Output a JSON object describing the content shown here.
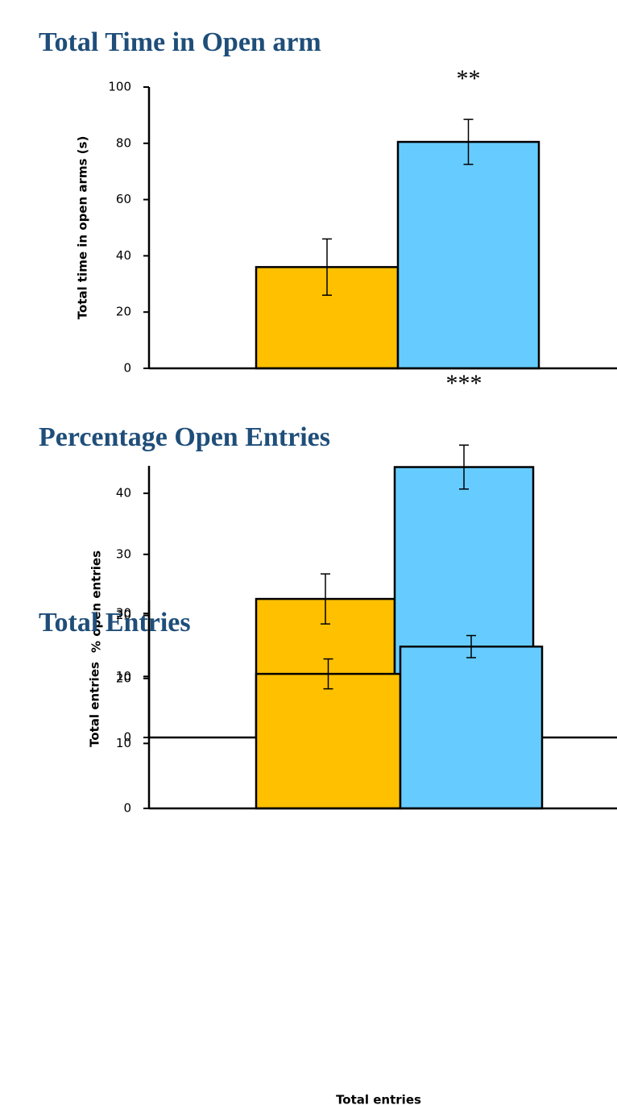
{
  "chart_data": [
    {
      "type": "bar",
      "title": "Total Time in Open arm",
      "y_label": "Total time in open arms (s)",
      "categories": [
        null,
        null
      ],
      "values": [
        36,
        80.5
      ],
      "errors": [
        10,
        8
      ],
      "colors": [
        "#ffc000",
        "#66ccff"
      ],
      "ylim": [
        0,
        100
      ],
      "yticks": [
        0,
        20,
        40,
        60,
        80,
        100
      ],
      "annotations": [
        {
          "text": "**",
          "category": 1
        }
      ]
    },
    {
      "type": "bar",
      "title": "Percentage Open Entries",
      "y_label": "% open entries",
      "categories": [
        null,
        null
      ],
      "values": [
        22.7,
        44.3
      ],
      "errors": [
        4.1,
        3.6
      ],
      "colors": [
        "#ffc000",
        "#66ccff"
      ],
      "ylim": [
        0,
        44.5
      ],
      "yticks": [
        0,
        10,
        20,
        30,
        40
      ],
      "annotations": [
        {
          "text": "***",
          "category": 1
        }
      ]
    },
    {
      "type": "bar",
      "title": "Total Entries",
      "y_label": "Total entries",
      "x_label": "Total entries",
      "categories": [
        null,
        null
      ],
      "values": [
        20.7,
        24.9
      ],
      "errors": [
        2.3,
        1.7
      ],
      "colors": [
        "#ffc000",
        "#66ccff"
      ],
      "ylim": [
        0,
        32
      ],
      "yticks": [
        0,
        10,
        20,
        30
      ]
    }
  ]
}
